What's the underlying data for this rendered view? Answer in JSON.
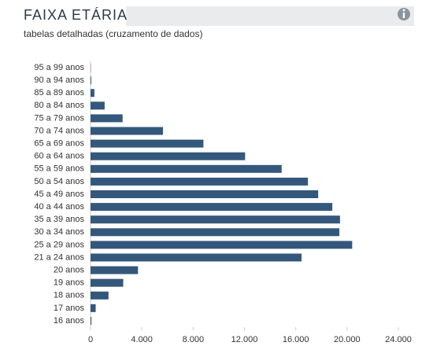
{
  "chart_data": {
    "type": "bar",
    "orientation": "horizontal",
    "title": "FAIXA ETÁRIA",
    "subtitle": "tabelas detalhadas (cruzamento de dados)",
    "categories": [
      "95 a 99 anos",
      "90 a 94 anos",
      "85 a 89 anos",
      "80 a 84 anos",
      "75 a 79 anos",
      "70 a 74 anos",
      "65 a 69 anos",
      "60 a 64 anos",
      "55 a 59 anos",
      "50 a 54 anos",
      "45 a 49 anos",
      "40 a 44 anos",
      "35 a 39 anos",
      "30 a 34 anos",
      "25 a 29 anos",
      "21 a 24 anos",
      "20 anos",
      "19 anos",
      "18 anos",
      "17 anos",
      "16 anos"
    ],
    "values": [
      20,
      60,
      300,
      1100,
      2500,
      5650,
      8800,
      12050,
      14900,
      16950,
      17750,
      18850,
      19450,
      19400,
      20400,
      16450,
      3700,
      2550,
      1400,
      400,
      70
    ],
    "color": "#34587c",
    "xlim": [
      0,
      24000
    ],
    "xticks": [
      0,
      {
        "value": 4000,
        "label": "4.000"
      },
      {
        "value": 8000,
        "label": "8.000"
      },
      {
        "value": 12000,
        "label": "12.000"
      },
      {
        "value": 16000,
        "label": "16.000"
      },
      {
        "value": 20000,
        "label": "20.000"
      },
      {
        "value": 24000,
        "label": "24.000"
      }
    ],
    "grid": false
  }
}
